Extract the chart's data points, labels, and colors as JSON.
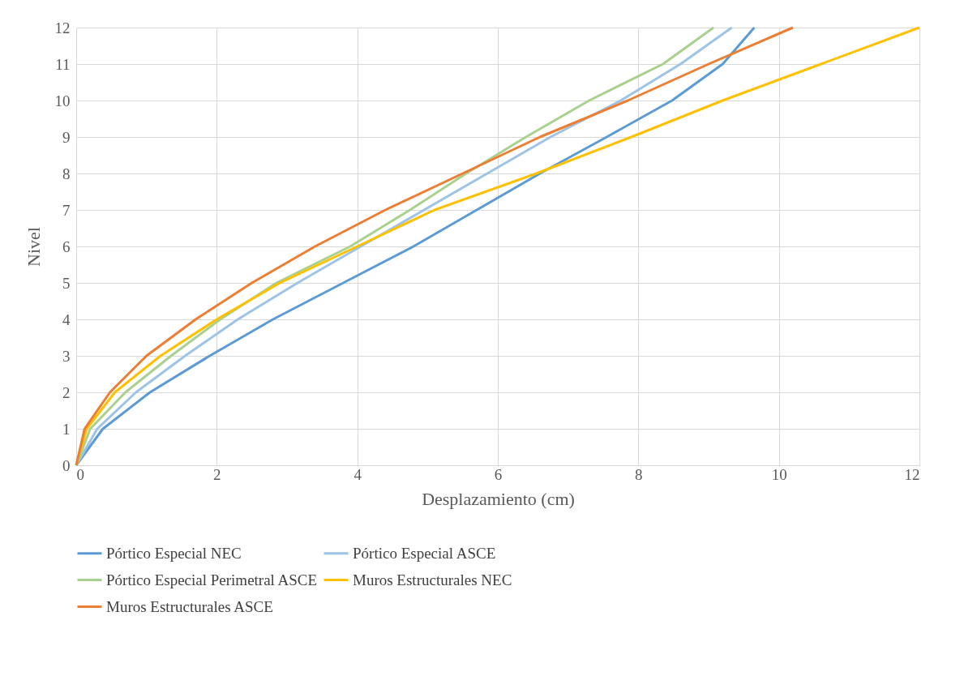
{
  "chart_data": {
    "type": "line",
    "xlabel": "Desplazamiento (cm)",
    "ylabel": "Nivel",
    "xlim": [
      0,
      12
    ],
    "ylim": [
      0,
      12
    ],
    "xticks": [
      0,
      2,
      4,
      6,
      8,
      10,
      12
    ],
    "yticks": [
      0,
      1,
      2,
      3,
      4,
      5,
      6,
      7,
      8,
      9,
      10,
      11,
      12
    ],
    "grid": true,
    "legend": "bottom",
    "marker": "none",
    "series": [
      {
        "name": "Pórtico Especial NEC",
        "color": "#5b9bd5",
        "x": [
          0,
          0.38,
          1.05,
          1.9,
          2.8,
          3.8,
          4.8,
          5.7,
          6.6,
          7.55,
          8.48,
          9.2,
          9.65
        ],
        "values": [
          0,
          1,
          2,
          3,
          4,
          5,
          6,
          7,
          8,
          9,
          10,
          11,
          12
        ]
      },
      {
        "name": "Pórtico Especial ASCE",
        "color": "#9dc3e6",
        "x": [
          0,
          0.3,
          0.85,
          1.55,
          2.3,
          3.15,
          4.05,
          4.95,
          5.85,
          6.75,
          7.75,
          8.6,
          9.33
        ],
        "values": [
          0,
          1,
          2,
          3,
          4,
          5,
          6,
          7,
          8,
          9,
          10,
          11,
          12
        ]
      },
      {
        "name": "Pórtico Especial Perimetral ASCE",
        "color": "#a9d18e",
        "x": [
          0,
          0.2,
          0.7,
          1.35,
          2.05,
          2.85,
          3.9,
          4.75,
          5.55,
          6.4,
          7.3,
          8.35,
          9.07
        ],
        "values": [
          0,
          1,
          2,
          3,
          4,
          5,
          6,
          7,
          8,
          9,
          10,
          11,
          12
        ]
      },
      {
        "name": "Muros Estructurales NEC",
        "color": "#ffc000",
        "x": [
          0,
          0.15,
          0.55,
          1.2,
          2.0,
          2.9,
          4.0,
          5.1,
          6.55,
          7.9,
          9.2,
          10.6,
          12
        ],
        "values": [
          0,
          1,
          2,
          3,
          4,
          5,
          6,
          7,
          8,
          9,
          10,
          11,
          12
        ]
      },
      {
        "name": "Muros Estructurales ASCE",
        "color": "#ed7d31",
        "x": [
          0,
          0.12,
          0.48,
          1.0,
          1.7,
          2.5,
          3.4,
          4.4,
          5.5,
          6.6,
          7.85,
          9.0,
          10.2
        ],
        "values": [
          0,
          1,
          2,
          3,
          4,
          5,
          6,
          7,
          8,
          9,
          10,
          11,
          12
        ]
      }
    ]
  }
}
